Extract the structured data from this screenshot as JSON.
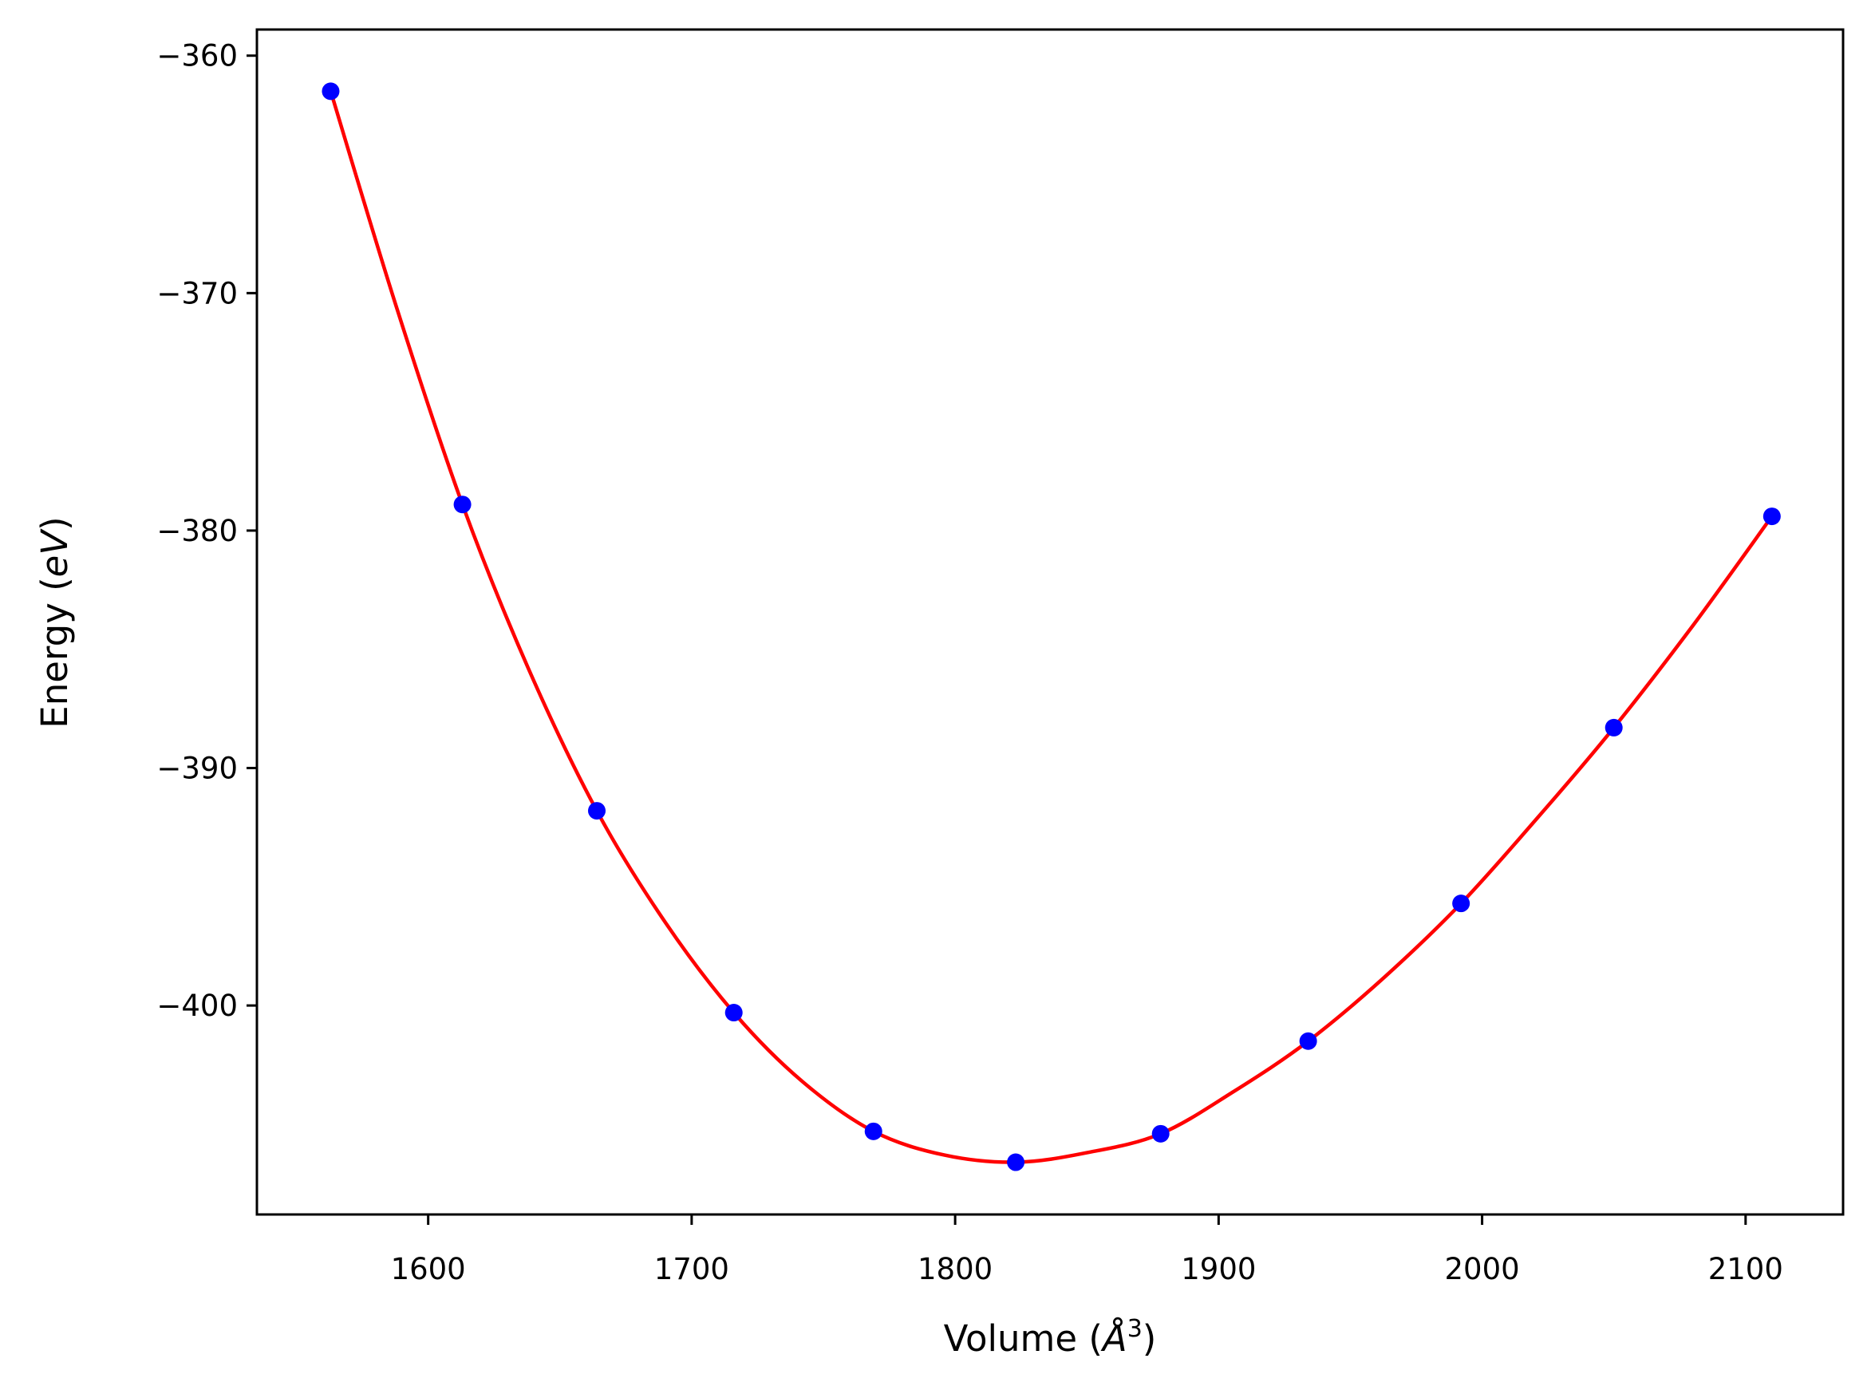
{
  "chart_data": {
    "type": "scatter",
    "title": "",
    "xlabel_prefix": "Volume (",
    "xlabel_symbol": "Å",
    "xlabel_exponent": "3",
    "xlabel_suffix": ")",
    "ylabel_prefix": "Energy (",
    "ylabel_unit": "eV",
    "ylabel_suffix": ")",
    "xlim": [
      1535,
      2137
    ],
    "ylim": [
      -408.8,
      -358.9
    ],
    "x_ticks": [
      1600,
      1700,
      1800,
      1900,
      2000,
      2100
    ],
    "x_tick_labels": [
      "1600",
      "1700",
      "1800",
      "1900",
      "2000",
      "2100"
    ],
    "y_ticks": [
      -360,
      -370,
      -380,
      -390,
      -400
    ],
    "y_tick_labels": [
      "−360",
      "−370",
      "−380",
      "−390",
      "−400"
    ],
    "grid": false,
    "legend": "none",
    "series": [
      {
        "kind": "points",
        "color": "#0000ff",
        "points": [
          {
            "x": 1563,
            "y": -361.5
          },
          {
            "x": 1613,
            "y": -378.9
          },
          {
            "x": 1664,
            "y": -391.8
          },
          {
            "x": 1716,
            "y": -400.3
          },
          {
            "x": 1769,
            "y": -405.3
          },
          {
            "x": 1823,
            "y": -406.6
          },
          {
            "x": 1878,
            "y": -405.4
          },
          {
            "x": 1934,
            "y": -401.5
          },
          {
            "x": 1992,
            "y": -395.7
          },
          {
            "x": 2050,
            "y": -388.3
          },
          {
            "x": 2110,
            "y": -379.4
          }
        ]
      },
      {
        "kind": "fit-curve",
        "color": "#ff0000",
        "points": [
          {
            "x": 1563,
            "y": -361.5
          },
          {
            "x": 1588,
            "y": -370.6
          },
          {
            "x": 1613,
            "y": -378.9
          },
          {
            "x": 1638,
            "y": -385.8
          },
          {
            "x": 1664,
            "y": -391.8
          },
          {
            "x": 1690,
            "y": -396.5
          },
          {
            "x": 1716,
            "y": -400.3
          },
          {
            "x": 1742,
            "y": -403.2
          },
          {
            "x": 1769,
            "y": -405.3
          },
          {
            "x": 1796,
            "y": -406.3
          },
          {
            "x": 1823,
            "y": -406.6
          },
          {
            "x": 1850,
            "y": -406.2
          },
          {
            "x": 1878,
            "y": -405.4
          },
          {
            "x": 1906,
            "y": -403.6
          },
          {
            "x": 1934,
            "y": -401.5
          },
          {
            "x": 1963,
            "y": -398.8
          },
          {
            "x": 1992,
            "y": -395.7
          },
          {
            "x": 2021,
            "y": -392.1
          },
          {
            "x": 2050,
            "y": -388.3
          },
          {
            "x": 2080,
            "y": -384.0
          },
          {
            "x": 2110,
            "y": -379.4
          }
        ]
      }
    ]
  }
}
